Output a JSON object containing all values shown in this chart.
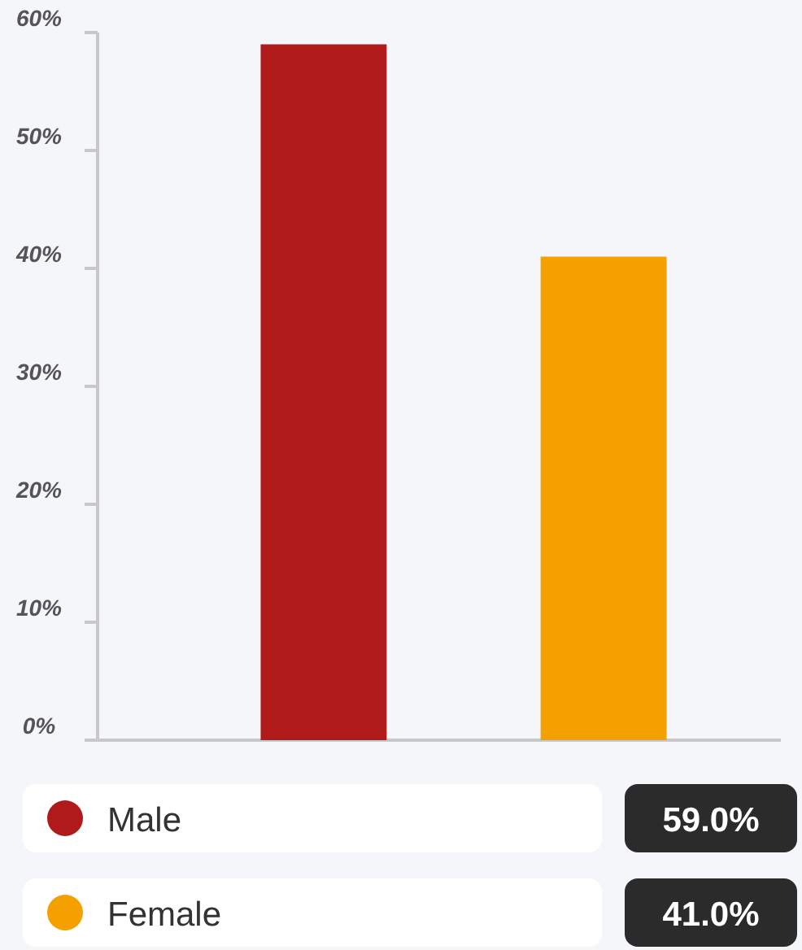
{
  "chart_data": {
    "type": "bar",
    "categories": [
      null,
      null
    ],
    "series": [
      {
        "name": "Male",
        "color": "#b01a1a",
        "values": [
          59.0,
          null
        ]
      },
      {
        "name": "Female",
        "color": "#f4a100",
        "values": [
          null,
          41.0
        ]
      }
    ],
    "annotations": [
      "59.0%",
      "41.0%"
    ],
    "ylim": [
      0,
      60
    ],
    "yticks": [
      {
        "value": 0,
        "label": "0%"
      },
      {
        "value": 10,
        "label": "10%"
      },
      {
        "value": 20,
        "label": "20%"
      },
      {
        "value": 30,
        "label": "30%"
      },
      {
        "value": 40,
        "label": "40%"
      },
      {
        "value": 50,
        "label": "50%"
      },
      {
        "value": 60,
        "label": "60%"
      }
    ],
    "legend": "bottom"
  }
}
